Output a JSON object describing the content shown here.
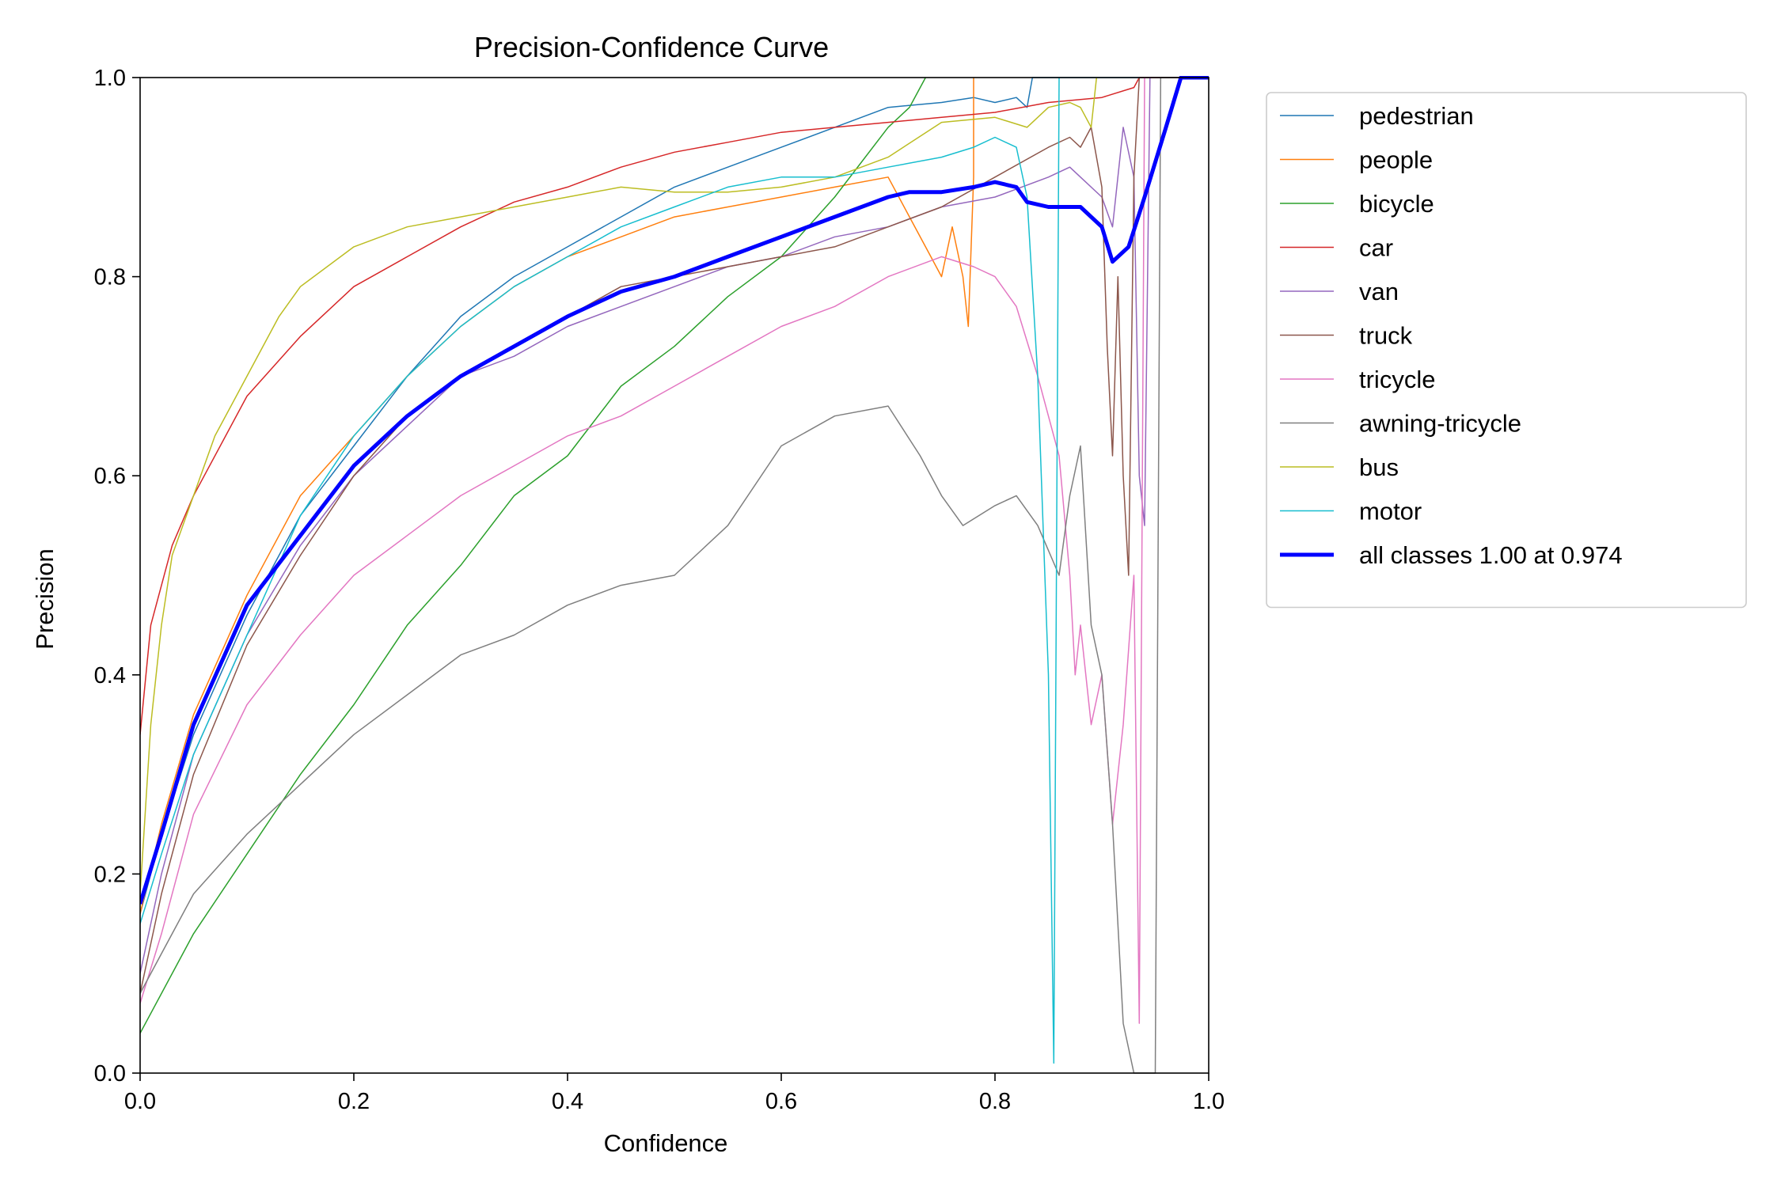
{
  "chart_data": {
    "type": "line",
    "title": "Precision-Confidence Curve",
    "xlabel": "Confidence",
    "ylabel": "Precision",
    "xlim": [
      0,
      1
    ],
    "ylim": [
      0,
      1
    ],
    "xticks": [
      "0.0",
      "0.2",
      "0.4",
      "0.6",
      "0.8",
      "1.0"
    ],
    "yticks": [
      "0.0",
      "0.2",
      "0.4",
      "0.6",
      "0.8",
      "1.0"
    ],
    "grid": false,
    "legend_position": "outside-upper-right",
    "series": [
      {
        "name": "pedestrian",
        "color": "#1f77b4",
        "width": 1.5,
        "points": [
          [
            0,
            0.16
          ],
          [
            0.02,
            0.24
          ],
          [
            0.05,
            0.34
          ],
          [
            0.1,
            0.46
          ],
          [
            0.15,
            0.56
          ],
          [
            0.2,
            0.63
          ],
          [
            0.25,
            0.7
          ],
          [
            0.3,
            0.76
          ],
          [
            0.35,
            0.8
          ],
          [
            0.4,
            0.83
          ],
          [
            0.45,
            0.86
          ],
          [
            0.5,
            0.89
          ],
          [
            0.55,
            0.91
          ],
          [
            0.6,
            0.93
          ],
          [
            0.65,
            0.95
          ],
          [
            0.7,
            0.97
          ],
          [
            0.75,
            0.975
          ],
          [
            0.78,
            0.98
          ],
          [
            0.8,
            0.975
          ],
          [
            0.82,
            0.98
          ],
          [
            0.83,
            0.97
          ],
          [
            0.835,
            1.0
          ],
          [
            1.0,
            1.0
          ]
        ]
      },
      {
        "name": "people",
        "color": "#ff7f0e",
        "width": 1.5,
        "points": [
          [
            0,
            0.16
          ],
          [
            0.02,
            0.25
          ],
          [
            0.05,
            0.36
          ],
          [
            0.1,
            0.48
          ],
          [
            0.15,
            0.58
          ],
          [
            0.2,
            0.64
          ],
          [
            0.25,
            0.7
          ],
          [
            0.3,
            0.75
          ],
          [
            0.35,
            0.79
          ],
          [
            0.4,
            0.82
          ],
          [
            0.45,
            0.84
          ],
          [
            0.5,
            0.86
          ],
          [
            0.55,
            0.87
          ],
          [
            0.6,
            0.88
          ],
          [
            0.65,
            0.89
          ],
          [
            0.7,
            0.9
          ],
          [
            0.72,
            0.86
          ],
          [
            0.74,
            0.82
          ],
          [
            0.75,
            0.8
          ],
          [
            0.76,
            0.85
          ],
          [
            0.77,
            0.8
          ],
          [
            0.775,
            0.75
          ],
          [
            0.78,
            0.9
          ],
          [
            0.78,
            1.0
          ]
        ]
      },
      {
        "name": "bicycle",
        "color": "#2ca02c",
        "width": 1.5,
        "points": [
          [
            0,
            0.04
          ],
          [
            0.05,
            0.14
          ],
          [
            0.1,
            0.22
          ],
          [
            0.15,
            0.3
          ],
          [
            0.2,
            0.37
          ],
          [
            0.25,
            0.45
          ],
          [
            0.3,
            0.51
          ],
          [
            0.35,
            0.58
          ],
          [
            0.4,
            0.62
          ],
          [
            0.45,
            0.69
          ],
          [
            0.5,
            0.73
          ],
          [
            0.55,
            0.78
          ],
          [
            0.6,
            0.82
          ],
          [
            0.65,
            0.88
          ],
          [
            0.7,
            0.95
          ],
          [
            0.72,
            0.97
          ],
          [
            0.73,
            0.99
          ],
          [
            0.735,
            1.0
          ]
        ]
      },
      {
        "name": "car",
        "color": "#d62728",
        "width": 1.5,
        "points": [
          [
            0,
            0.34
          ],
          [
            0.01,
            0.45
          ],
          [
            0.03,
            0.53
          ],
          [
            0.05,
            0.58
          ],
          [
            0.1,
            0.68
          ],
          [
            0.15,
            0.74
          ],
          [
            0.2,
            0.79
          ],
          [
            0.25,
            0.82
          ],
          [
            0.3,
            0.85
          ],
          [
            0.35,
            0.875
          ],
          [
            0.4,
            0.89
          ],
          [
            0.45,
            0.91
          ],
          [
            0.5,
            0.925
          ],
          [
            0.55,
            0.935
          ],
          [
            0.6,
            0.945
          ],
          [
            0.65,
            0.95
          ],
          [
            0.7,
            0.955
          ],
          [
            0.75,
            0.96
          ],
          [
            0.8,
            0.965
          ],
          [
            0.85,
            0.975
          ],
          [
            0.9,
            0.98
          ],
          [
            0.93,
            0.99
          ],
          [
            0.935,
            1.0
          ],
          [
            1.0,
            1.0
          ]
        ]
      },
      {
        "name": "van",
        "color": "#9467bd",
        "width": 1.5,
        "points": [
          [
            0,
            0.1
          ],
          [
            0.02,
            0.2
          ],
          [
            0.05,
            0.32
          ],
          [
            0.1,
            0.44
          ],
          [
            0.15,
            0.53
          ],
          [
            0.2,
            0.6
          ],
          [
            0.25,
            0.65
          ],
          [
            0.3,
            0.7
          ],
          [
            0.35,
            0.72
          ],
          [
            0.4,
            0.75
          ],
          [
            0.45,
            0.77
          ],
          [
            0.5,
            0.79
          ],
          [
            0.55,
            0.81
          ],
          [
            0.6,
            0.82
          ],
          [
            0.65,
            0.84
          ],
          [
            0.7,
            0.85
          ],
          [
            0.75,
            0.87
          ],
          [
            0.8,
            0.88
          ],
          [
            0.85,
            0.9
          ],
          [
            0.87,
            0.91
          ],
          [
            0.88,
            0.9
          ],
          [
            0.9,
            0.88
          ],
          [
            0.91,
            0.85
          ],
          [
            0.92,
            0.95
          ],
          [
            0.93,
            0.9
          ],
          [
            0.935,
            0.6
          ],
          [
            0.94,
            0.55
          ],
          [
            0.945,
            1.0
          ]
        ]
      },
      {
        "name": "truck",
        "color": "#8c564b",
        "width": 1.5,
        "points": [
          [
            0,
            0.08
          ],
          [
            0.02,
            0.18
          ],
          [
            0.05,
            0.3
          ],
          [
            0.1,
            0.43
          ],
          [
            0.15,
            0.52
          ],
          [
            0.2,
            0.6
          ],
          [
            0.25,
            0.66
          ],
          [
            0.3,
            0.7
          ],
          [
            0.35,
            0.73
          ],
          [
            0.4,
            0.76
          ],
          [
            0.45,
            0.79
          ],
          [
            0.5,
            0.8
          ],
          [
            0.55,
            0.81
          ],
          [
            0.6,
            0.82
          ],
          [
            0.65,
            0.83
          ],
          [
            0.7,
            0.85
          ],
          [
            0.75,
            0.87
          ],
          [
            0.8,
            0.9
          ],
          [
            0.85,
            0.93
          ],
          [
            0.87,
            0.94
          ],
          [
            0.88,
            0.93
          ],
          [
            0.89,
            0.95
          ],
          [
            0.9,
            0.89
          ],
          [
            0.905,
            0.73
          ],
          [
            0.91,
            0.62
          ],
          [
            0.915,
            0.8
          ],
          [
            0.92,
            0.6
          ],
          [
            0.925,
            0.5
          ],
          [
            0.93,
            0.9
          ],
          [
            0.935,
            1.0
          ]
        ]
      },
      {
        "name": "tricycle",
        "color": "#e377c2",
        "width": 1.5,
        "points": [
          [
            0,
            0.07
          ],
          [
            0.02,
            0.14
          ],
          [
            0.05,
            0.26
          ],
          [
            0.1,
            0.37
          ],
          [
            0.15,
            0.44
          ],
          [
            0.2,
            0.5
          ],
          [
            0.25,
            0.54
          ],
          [
            0.3,
            0.58
          ],
          [
            0.35,
            0.61
          ],
          [
            0.4,
            0.64
          ],
          [
            0.45,
            0.66
          ],
          [
            0.5,
            0.69
          ],
          [
            0.55,
            0.72
          ],
          [
            0.6,
            0.75
          ],
          [
            0.65,
            0.77
          ],
          [
            0.7,
            0.8
          ],
          [
            0.75,
            0.82
          ],
          [
            0.78,
            0.81
          ],
          [
            0.8,
            0.8
          ],
          [
            0.82,
            0.77
          ],
          [
            0.84,
            0.7
          ],
          [
            0.86,
            0.62
          ],
          [
            0.87,
            0.5
          ],
          [
            0.875,
            0.4
          ],
          [
            0.88,
            0.45
          ],
          [
            0.89,
            0.35
          ],
          [
            0.9,
            0.4
          ],
          [
            0.91,
            0.25
          ],
          [
            0.92,
            0.35
          ],
          [
            0.93,
            0.5
          ],
          [
            0.935,
            0.05
          ],
          [
            0.94,
            1.0
          ]
        ]
      },
      {
        "name": "awning-tricycle",
        "color": "#7f7f7f",
        "width": 1.5,
        "points": [
          [
            0,
            0.08
          ],
          [
            0.02,
            0.12
          ],
          [
            0.05,
            0.18
          ],
          [
            0.1,
            0.24
          ],
          [
            0.15,
            0.29
          ],
          [
            0.2,
            0.34
          ],
          [
            0.25,
            0.38
          ],
          [
            0.3,
            0.42
          ],
          [
            0.35,
            0.44
          ],
          [
            0.4,
            0.47
          ],
          [
            0.45,
            0.49
          ],
          [
            0.5,
            0.5
          ],
          [
            0.55,
            0.55
          ],
          [
            0.6,
            0.63
          ],
          [
            0.65,
            0.66
          ],
          [
            0.7,
            0.67
          ],
          [
            0.73,
            0.62
          ],
          [
            0.75,
            0.58
          ],
          [
            0.77,
            0.55
          ],
          [
            0.8,
            0.57
          ],
          [
            0.82,
            0.58
          ],
          [
            0.84,
            0.55
          ],
          [
            0.86,
            0.5
          ],
          [
            0.87,
            0.58
          ],
          [
            0.88,
            0.63
          ],
          [
            0.89,
            0.45
          ],
          [
            0.9,
            0.4
          ],
          [
            0.91,
            0.25
          ],
          [
            0.92,
            0.05
          ],
          [
            0.93,
            0.0
          ],
          [
            0.94,
            0.0
          ],
          [
            0.95,
            0.0
          ],
          [
            0.955,
            1.0
          ],
          [
            1.0,
            1.0
          ]
        ]
      },
      {
        "name": "bus",
        "color": "#bcbd22",
        "width": 1.5,
        "points": [
          [
            0,
            0.18
          ],
          [
            0.01,
            0.35
          ],
          [
            0.02,
            0.45
          ],
          [
            0.03,
            0.52
          ],
          [
            0.05,
            0.58
          ],
          [
            0.07,
            0.64
          ],
          [
            0.1,
            0.7
          ],
          [
            0.13,
            0.76
          ],
          [
            0.15,
            0.79
          ],
          [
            0.2,
            0.83
          ],
          [
            0.25,
            0.85
          ],
          [
            0.3,
            0.86
          ],
          [
            0.35,
            0.87
          ],
          [
            0.4,
            0.88
          ],
          [
            0.45,
            0.89
          ],
          [
            0.5,
            0.885
          ],
          [
            0.55,
            0.885
          ],
          [
            0.6,
            0.89
          ],
          [
            0.65,
            0.9
          ],
          [
            0.7,
            0.92
          ],
          [
            0.75,
            0.955
          ],
          [
            0.8,
            0.96
          ],
          [
            0.83,
            0.95
          ],
          [
            0.85,
            0.97
          ],
          [
            0.87,
            0.975
          ],
          [
            0.88,
            0.97
          ],
          [
            0.89,
            0.95
          ],
          [
            0.895,
            1.0
          ]
        ]
      },
      {
        "name": "motor",
        "color": "#17becf",
        "width": 1.5,
        "points": [
          [
            0,
            0.15
          ],
          [
            0.02,
            0.22
          ],
          [
            0.05,
            0.32
          ],
          [
            0.1,
            0.44
          ],
          [
            0.15,
            0.56
          ],
          [
            0.2,
            0.64
          ],
          [
            0.25,
            0.7
          ],
          [
            0.3,
            0.75
          ],
          [
            0.35,
            0.79
          ],
          [
            0.4,
            0.82
          ],
          [
            0.45,
            0.85
          ],
          [
            0.5,
            0.87
          ],
          [
            0.55,
            0.89
          ],
          [
            0.6,
            0.9
          ],
          [
            0.65,
            0.9
          ],
          [
            0.7,
            0.91
          ],
          [
            0.75,
            0.92
          ],
          [
            0.78,
            0.93
          ],
          [
            0.8,
            0.94
          ],
          [
            0.82,
            0.93
          ],
          [
            0.83,
            0.88
          ],
          [
            0.84,
            0.7
          ],
          [
            0.85,
            0.4
          ],
          [
            0.855,
            0.01
          ],
          [
            0.86,
            1.0
          ]
        ]
      },
      {
        "name": "all classes 1.00 at 0.974",
        "color": "#0000ff",
        "width": 5,
        "points": [
          [
            0,
            0.17
          ],
          [
            0.02,
            0.24
          ],
          [
            0.05,
            0.35
          ],
          [
            0.1,
            0.47
          ],
          [
            0.15,
            0.54
          ],
          [
            0.2,
            0.61
          ],
          [
            0.25,
            0.66
          ],
          [
            0.3,
            0.7
          ],
          [
            0.35,
            0.73
          ],
          [
            0.4,
            0.76
          ],
          [
            0.45,
            0.785
          ],
          [
            0.5,
            0.8
          ],
          [
            0.55,
            0.82
          ],
          [
            0.6,
            0.84
          ],
          [
            0.65,
            0.86
          ],
          [
            0.7,
            0.88
          ],
          [
            0.72,
            0.885
          ],
          [
            0.75,
            0.885
          ],
          [
            0.78,
            0.89
          ],
          [
            0.8,
            0.895
          ],
          [
            0.82,
            0.89
          ],
          [
            0.83,
            0.875
          ],
          [
            0.85,
            0.87
          ],
          [
            0.88,
            0.87
          ],
          [
            0.9,
            0.85
          ],
          [
            0.91,
            0.815
          ],
          [
            0.925,
            0.83
          ],
          [
            0.94,
            0.88
          ],
          [
            0.96,
            0.95
          ],
          [
            0.974,
            1.0
          ],
          [
            1.0,
            1.0
          ]
        ]
      }
    ]
  }
}
